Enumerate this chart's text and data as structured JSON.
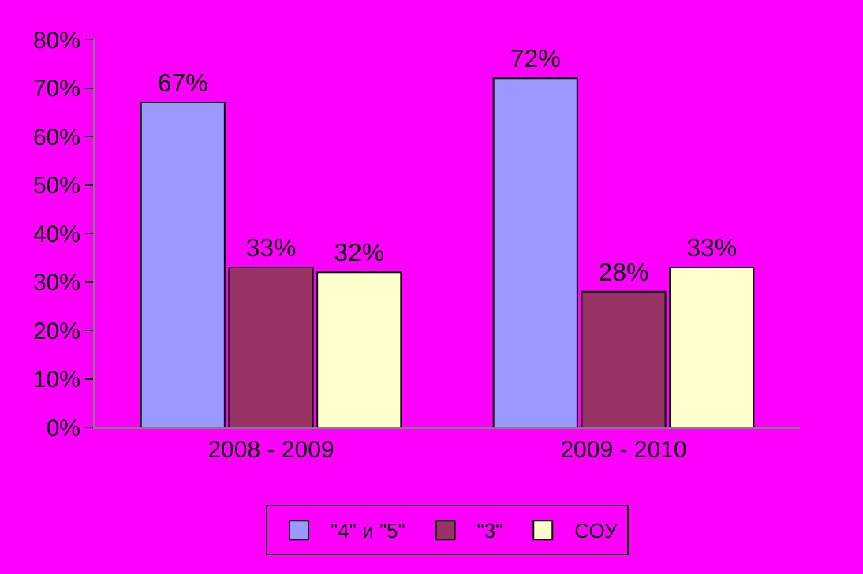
{
  "chart_data": {
    "type": "bar",
    "categories": [
      "2008 - 2009",
      "2009 - 2010"
    ],
    "series": [
      {
        "name": "\"4\" и \"5\"",
        "color": "#9999ff",
        "values": [
          67,
          72
        ],
        "value_labels": [
          "67%",
          "72%"
        ]
      },
      {
        "name": "\"3\"",
        "color": "#993366",
        "values": [
          33,
          28
        ],
        "value_labels": [
          "33%",
          "28%"
        ]
      },
      {
        "name": "СОУ",
        "color": "#ffffcc",
        "values": [
          32,
          33
        ],
        "value_labels": [
          "32%",
          "33%"
        ]
      }
    ],
    "ylim": [
      0,
      80
    ],
    "yticks": [
      {
        "value": 0,
        "label": "0%"
      },
      {
        "value": 10,
        "label": "10%"
      },
      {
        "value": 20,
        "label": "20%"
      },
      {
        "value": 30,
        "label": "30%"
      },
      {
        "value": 40,
        "label": "40%"
      },
      {
        "value": 50,
        "label": "50%"
      },
      {
        "value": 60,
        "label": "60%"
      },
      {
        "value": 70,
        "label": "70%"
      },
      {
        "value": 80,
        "label": "80%"
      }
    ],
    "grid": false,
    "legend": "bottom"
  }
}
